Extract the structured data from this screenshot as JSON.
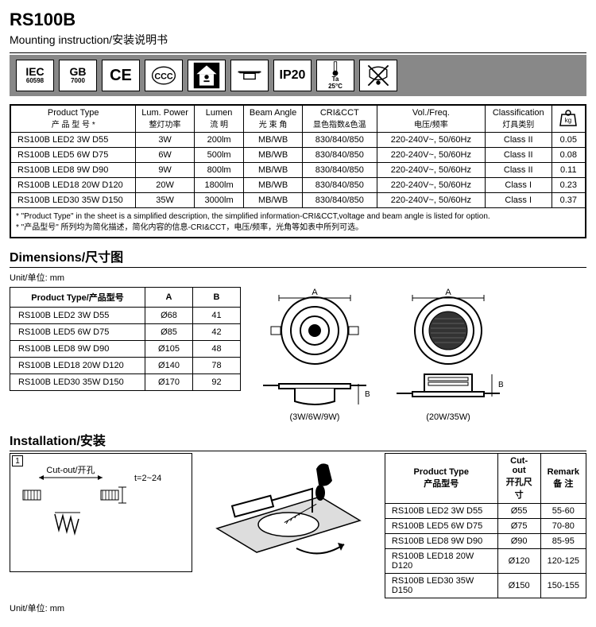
{
  "header": {
    "product_title": "RS100B",
    "subtitle": "Mounting instruction/安装说明书"
  },
  "icon_bar": {
    "iec_label": "IEC",
    "iec_sub": "60598",
    "gb_label": "GB",
    "gb_sub": "7000",
    "ce_label": "CE",
    "ip_label": "IP20",
    "ta_label": "Ta",
    "ta_value": "25°C",
    "kg_label": "kg"
  },
  "spec_table": {
    "headers": {
      "product_type_en": "Product Type",
      "product_type_cn": "产 品 型 号 *",
      "lum_power_en": "Lum. Power",
      "lum_power_cn": "整灯功率",
      "lumen_en": "Lumen",
      "lumen_cn": "流 明",
      "beam_en": "Beam Angle",
      "beam_cn": "光 束 角",
      "cri_en": "CRI&CCT",
      "cri_cn": "显色指数&色温",
      "vol_en": "Vol./Freq.",
      "vol_cn": "电压/频率",
      "class_en": "Classification",
      "class_cn": "灯具类别",
      "kg_icon": "kg"
    },
    "rows": [
      {
        "type": "RS100B LED2 3W D55",
        "power": "3W",
        "lumen": "200lm",
        "beam": "MB/WB",
        "cri": "830/840/850",
        "vol": "220-240V~, 50/60Hz",
        "class": "Class II",
        "kg": "0.05"
      },
      {
        "type": "RS100B LED5 6W D75",
        "power": "6W",
        "lumen": "500lm",
        "beam": "MB/WB",
        "cri": "830/840/850",
        "vol": "220-240V~, 50/60Hz",
        "class": "Class II",
        "kg": "0.08"
      },
      {
        "type": "RS100B LED8 9W D90",
        "power": "9W",
        "lumen": "800lm",
        "beam": "MB/WB",
        "cri": "830/840/850",
        "vol": "220-240V~, 50/60Hz",
        "class": "Class II",
        "kg": "0.11"
      },
      {
        "type": "RS100B LED18 20W D120",
        "power": "20W",
        "lumen": "1800lm",
        "beam": "MB/WB",
        "cri": "830/840/850",
        "vol": "220-240V~, 50/60Hz",
        "class": "Class I",
        "kg": "0.23"
      },
      {
        "type": "RS100B LED30 35W D150",
        "power": "35W",
        "lumen": "3000lm",
        "beam": "MB/WB",
        "cri": "830/840/850",
        "vol": "220-240V~, 50/60Hz",
        "class": "Class I",
        "kg": "0.37"
      }
    ],
    "footnote_en": "* \"Product Type\" in the sheet is a simplified description, the simplified information-CRI&CCT,voltage and beam angle is listed for option.",
    "footnote_cn": "* \"产品型号\" 所列均为简化描述，简化内容的信息-CRI&CCT，电压/频率，光角等如表中所列可选。"
  },
  "dimensions": {
    "title": "Dimensions/尺寸图",
    "unit_label": "Unit/单位: mm",
    "headers": {
      "type": "Product Type/产品型号",
      "a": "A",
      "b": "B"
    },
    "rows": [
      {
        "type": "RS100B LED2 3W D55",
        "a": "Ø68",
        "b": "41"
      },
      {
        "type": "RS100B LED5 6W D75",
        "a": "Ø85",
        "b": "42"
      },
      {
        "type": "RS100B LED8 9W D90",
        "a": "Ø105",
        "b": "48"
      },
      {
        "type": "RS100B LED18 20W D120",
        "a": "Ø140",
        "b": "78"
      },
      {
        "type": "RS100B LED30 35W D150",
        "a": "Ø170",
        "b": "92"
      }
    ],
    "caption1": "(3W/6W/9W)",
    "caption2": "(20W/35W)",
    "dim_a_label": "A",
    "dim_b_label": "B"
  },
  "installation": {
    "title": "Installation/安装",
    "step_num": "1",
    "cutout_label": "Cut-out/开孔",
    "thickness_label": "t=2~24",
    "unit_label": "Unit/单位: mm",
    "headers": {
      "type_en": "Product Type",
      "type_cn": "产品型号",
      "cutout_en": "Cut-out",
      "cutout_cn": "开孔尺寸",
      "remark_en": "Remark",
      "remark_cn": "备 注"
    },
    "rows": [
      {
        "type": "RS100B LED2 3W D55",
        "cutout": "Ø55",
        "remark": "55-60"
      },
      {
        "type": "RS100B LED5 6W D75",
        "cutout": "Ø75",
        "remark": "70-80"
      },
      {
        "type": "RS100B LED8 9W D90",
        "cutout": "Ø90",
        "remark": "85-95"
      },
      {
        "type": "RS100B LED18 20W D120",
        "cutout": "Ø120",
        "remark": "120-125"
      },
      {
        "type": "RS100B LED30 35W D150",
        "cutout": "Ø150",
        "remark": "150-155"
      }
    ]
  },
  "colors": {
    "icon_bar_bg": "#888888",
    "border": "#000000"
  }
}
